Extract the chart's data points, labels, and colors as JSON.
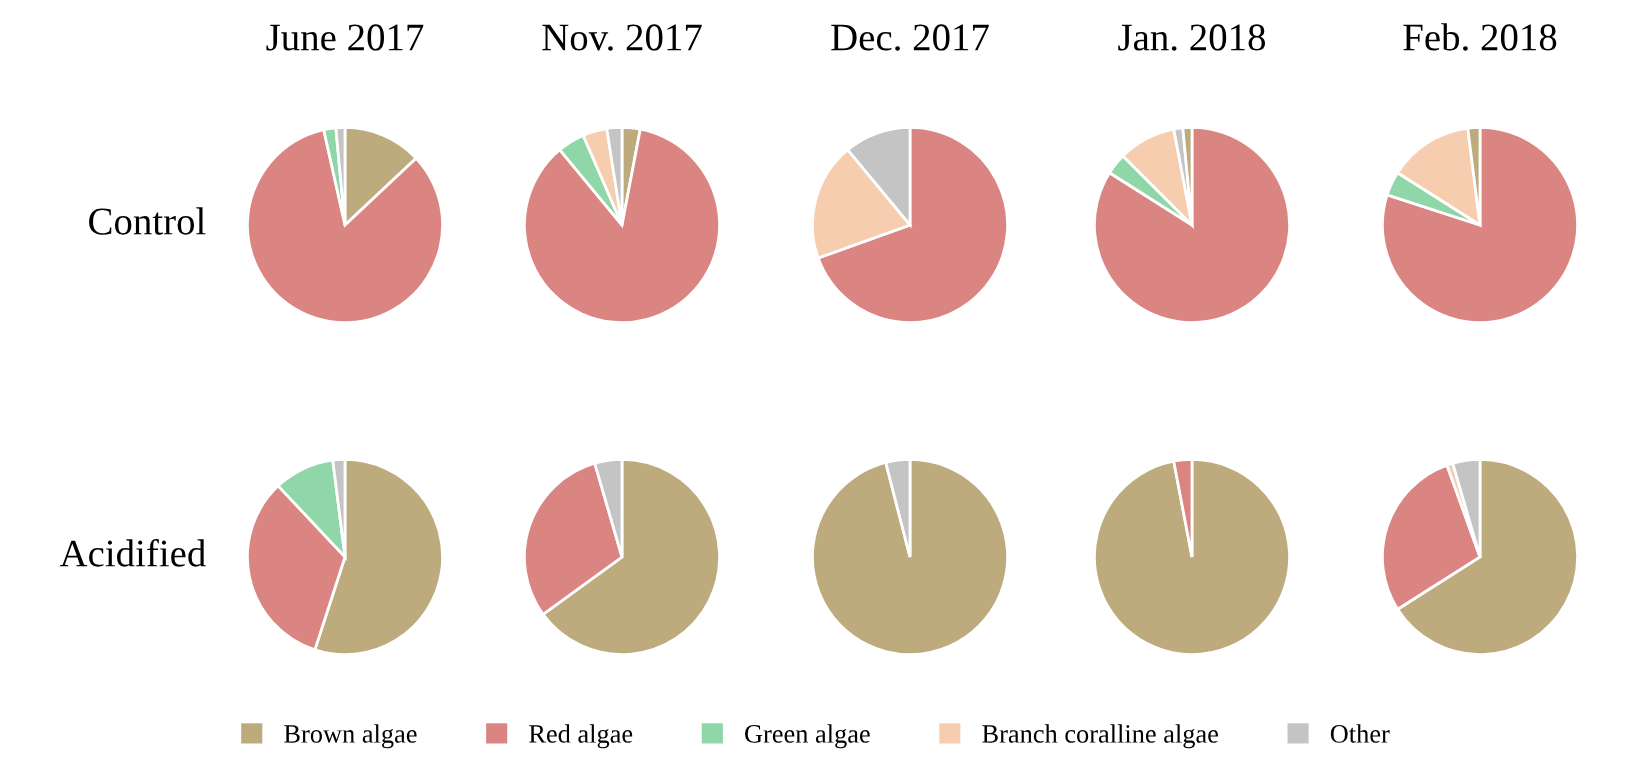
{
  "chart_data": [
    {
      "type": "pie",
      "title": "June 2017",
      "ylabel": "Control",
      "categories": [
        null,
        null,
        null,
        null
      ],
      "values": [
        13,
        83.5,
        2,
        1.5
      ],
      "colors": [
        "#bdab7e",
        "#da8581",
        "#8fd6a8",
        "#c4c4c4"
      ]
    },
    {
      "type": "pie",
      "title": "Nov. 2017",
      "legend": "bottom",
      "categories": [
        "Brown algae",
        "Red algae",
        "Green algae",
        "Branch coralline algae",
        "Other"
      ],
      "values": [
        3,
        86,
        4.5,
        4,
        2.5
      ],
      "colors": [
        "#bdab7e",
        "#da8581",
        "#8fd6a8",
        "#f7cdb0",
        "#c4c4c4"
      ]
    },
    {
      "type": "pie",
      "title": "Dec. 2017",
      "categories": [
        null,
        null,
        null
      ],
      "values": [
        69.5,
        19.5,
        11
      ],
      "colors": [
        "#da8581",
        "#f7cdb0",
        "#c4c4c4"
      ]
    },
    {
      "type": "pie",
      "title": "Jan. 2018",
      "categories": [
        null,
        null,
        null,
        null,
        null
      ],
      "values": [
        84,
        3.5,
        9.5,
        1.5,
        1.5
      ],
      "colors": [
        "#da8581",
        "#8fd6a8",
        "#f7cdb0",
        "#c4c4c4",
        "#bdab7e"
      ]
    },
    {
      "type": "pie",
      "title": "Feb. 2018",
      "categories": [
        null,
        null,
        null,
        null
      ],
      "values": [
        80,
        4,
        14,
        2
      ],
      "colors": [
        "#da8581",
        "#8fd6a8",
        "#f7cdb0",
        "#bdab7e"
      ]
    },
    {
      "type": "pie",
      "ylabel": "Acidified",
      "categories": [
        null,
        null,
        null,
        null
      ],
      "values": [
        55,
        33,
        10,
        2
      ],
      "colors": [
        "#bdab7e",
        "#da8581",
        "#8fd6a8",
        "#c4c4c4"
      ]
    },
    {
      "type": "pie",
      "categories": [
        null,
        null,
        null
      ],
      "values": [
        65,
        30.5,
        4.5
      ],
      "colors": [
        "#bdab7e",
        "#da8581",
        "#c4c4c4"
      ]
    },
    {
      "type": "pie",
      "categories": [
        null,
        null
      ],
      "values": [
        96,
        4
      ],
      "colors": [
        "#bdab7e",
        "#c4c4c4"
      ]
    },
    {
      "type": "pie",
      "categories": [
        null,
        null
      ],
      "values": [
        97,
        3
      ],
      "colors": [
        "#bdab7e",
        "#da8581"
      ]
    },
    {
      "type": "pie",
      "categories": [
        null,
        null,
        null,
        null
      ],
      "values": [
        66,
        28.5,
        1,
        4.5
      ],
      "colors": [
        "#bdab7e",
        "#da8581",
        "#f7cdb0",
        "#c4c4c4"
      ]
    }
  ]
}
